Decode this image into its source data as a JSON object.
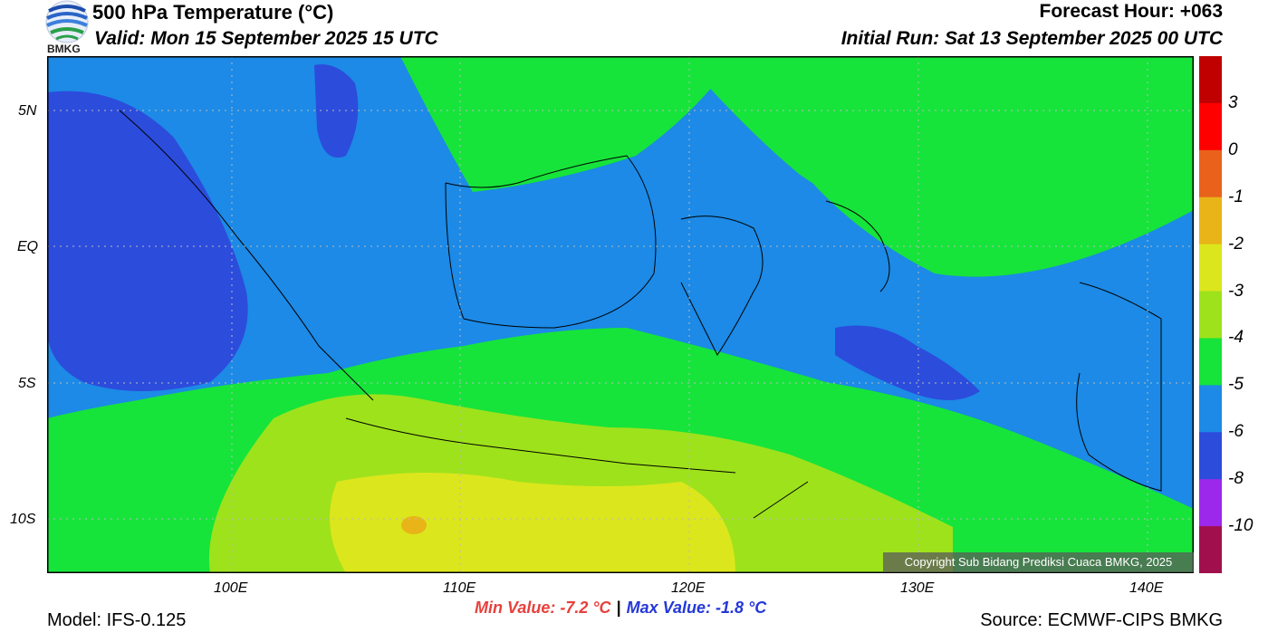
{
  "header": {
    "title": "500 hPa Temperature (°C)",
    "valid": "Valid: Mon 15 September 2025 15 UTC",
    "forecast_hour": "Forecast Hour: +063",
    "initial_run": "Initial Run: Sat 13 September 2025 00 UTC"
  },
  "logo": {
    "text": "BMKG"
  },
  "map": {
    "lat_labels": [
      "5N",
      "EQ",
      "5S",
      "10S"
    ],
    "lon_labels": [
      "100E",
      "110E",
      "120E",
      "130E",
      "140E"
    ],
    "copyright": "Copyright Sub Bidang Prediksi Cuaca BMKG, 2025"
  },
  "colorbar": {
    "labels": [
      "3",
      "0",
      "-1",
      "-2",
      "-3",
      "-4",
      "-5",
      "-6",
      "-8",
      "-10"
    ],
    "colors": [
      "#c00000",
      "#ff0000",
      "#e8621c",
      "#e8b418",
      "#dce61c",
      "#9ee21c",
      "#16e43a",
      "#1c8ae6",
      "#2c4cdc",
      "#9c28ec",
      "#a0104c"
    ]
  },
  "footer": {
    "min_value": "Min Value: -7.2 °C",
    "separator": "|",
    "max_value": "Max Value: -1.8 °C",
    "model": "Model: IFS-0.125",
    "source": "Source: ECMWF-CIPS BMKG"
  }
}
